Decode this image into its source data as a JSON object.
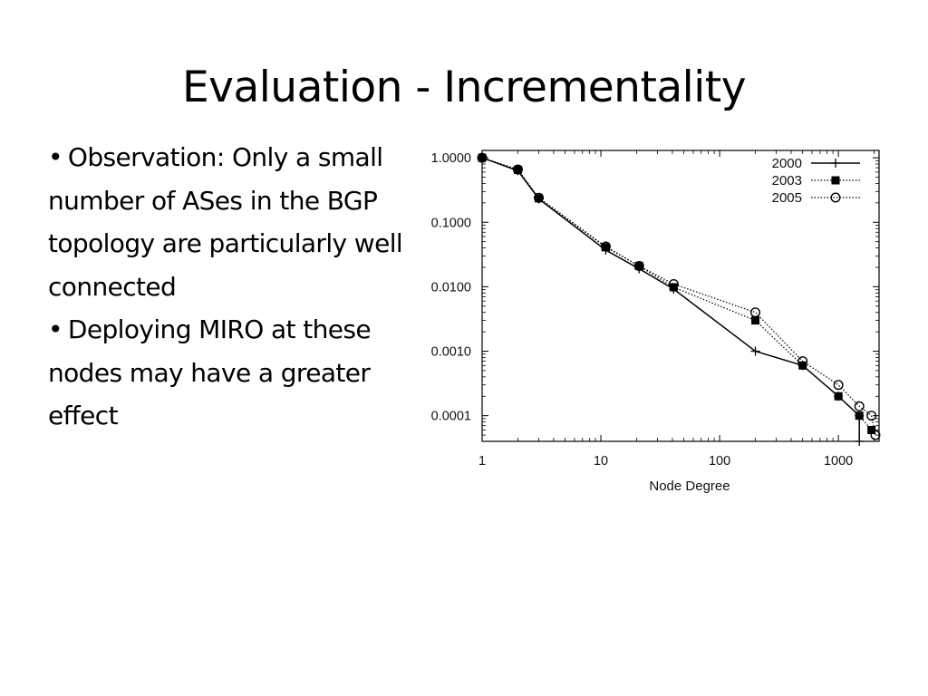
{
  "slide": {
    "title": "Evaluation - Incrementality",
    "bullets": [
      "Observation: Only a small number of ASes in the BGP topology are particularly well connected",
      "Deploying MIRO at these nodes may have a greater effect"
    ]
  },
  "chart_data": {
    "type": "line",
    "title": "",
    "xlabel": "Node Degree",
    "ylabel": "",
    "xscale": "log",
    "yscale": "log",
    "xlim": [
      1,
      2200
    ],
    "ylim": [
      4e-05,
      1.3
    ],
    "x_ticks": [
      1,
      10,
      100,
      1000
    ],
    "x_tick_labels": [
      "1",
      "10",
      "100",
      "1000"
    ],
    "y_ticks": [
      1,
      0.1,
      0.01,
      0.001,
      0.0001
    ],
    "y_tick_labels": [
      "1.0000",
      "0.1000",
      "0.0100",
      "0.0010",
      "0.0001"
    ],
    "grid": false,
    "legend_position": "top-right",
    "series": [
      {
        "name": "2000",
        "line_style": "solid",
        "marker": "plus",
        "points": [
          [
            1,
            1.0
          ],
          [
            2,
            0.63
          ],
          [
            3,
            0.23
          ],
          [
            11,
            0.037
          ],
          [
            21,
            0.019
          ],
          [
            41,
            0.0092
          ],
          [
            200,
            0.001
          ],
          [
            500,
            0.0006
          ],
          [
            1000,
            0.0002
          ],
          [
            1500,
            0.0001
          ],
          [
            1500,
            4e-05
          ]
        ]
      },
      {
        "name": "2003",
        "line_style": "dotted",
        "marker": "filled-square",
        "points": [
          [
            1,
            1.0
          ],
          [
            2,
            0.65
          ],
          [
            3,
            0.235
          ],
          [
            11,
            0.041
          ],
          [
            21,
            0.021
          ],
          [
            41,
            0.0098
          ],
          [
            200,
            0.003
          ],
          [
            500,
            0.0006
          ],
          [
            1000,
            0.0002
          ],
          [
            1500,
            0.0001
          ],
          [
            1900,
            6e-05
          ]
        ]
      },
      {
        "name": "2005",
        "line_style": "dotted",
        "marker": "open-circle",
        "points": [
          [
            1,
            1.0
          ],
          [
            2,
            0.66
          ],
          [
            3,
            0.24
          ],
          [
            11,
            0.042
          ],
          [
            21,
            0.021
          ],
          [
            41,
            0.011
          ],
          [
            200,
            0.004
          ],
          [
            500,
            0.0007
          ],
          [
            1000,
            0.0003
          ],
          [
            1500,
            0.00014
          ],
          [
            1900,
            0.0001
          ],
          [
            2050,
            5e-05
          ]
        ]
      }
    ]
  }
}
